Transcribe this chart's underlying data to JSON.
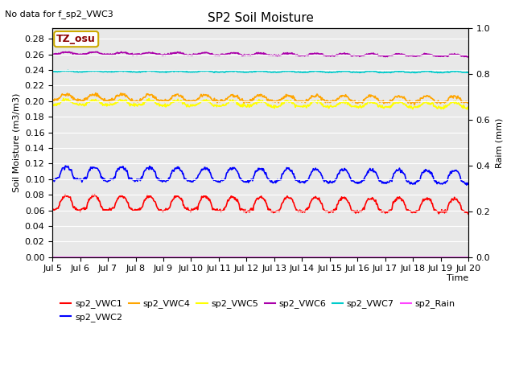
{
  "title": "SP2 Soil Moisture",
  "subtitle": "No data for f_sp2_VWC3",
  "xlabel": "Time",
  "ylabel_left": "Soil Moisture (m3/m3)",
  "ylabel_right": "Raim (mm)",
  "tz_label": "TZ_osu",
  "ylim_left": [
    0.0,
    0.2933
  ],
  "ylim_right": [
    0.0,
    1.0
  ],
  "yticks_left": [
    0.0,
    0.02,
    0.04,
    0.06,
    0.08,
    0.1,
    0.12,
    0.14,
    0.16,
    0.18,
    0.2,
    0.22,
    0.24,
    0.26,
    0.28
  ],
  "yticks_right": [
    0.0,
    0.2,
    0.4,
    0.6,
    0.8,
    1.0
  ],
  "xtick_labels": [
    "Jul 5",
    "Jul 6",
    "Jul 7",
    "Jul 8",
    "Jul 9",
    "Jul 10",
    "Jul 11",
    "Jul 12",
    "Jul 13",
    "Jul 14",
    "Jul 15",
    "Jul 16",
    "Jul 17",
    "Jul 18",
    "Jul 19",
    "Jul 20"
  ],
  "series": {
    "sp2_VWC1": {
      "color": "#ff0000",
      "base": 0.065,
      "amp": 0.014,
      "trend": -0.004,
      "noise": 0.001,
      "freq_mult": 1.0
    },
    "sp2_VWC2": {
      "color": "#0000ff",
      "base": 0.103,
      "amp": 0.013,
      "trend": -0.005,
      "noise": 0.001,
      "freq_mult": 1.0
    },
    "sp2_VWC4": {
      "color": "#ffa500",
      "base": 0.203,
      "amp": 0.006,
      "trend": -0.003,
      "noise": 0.001,
      "freq_mult": 1.0
    },
    "sp2_VWC5": {
      "color": "#ffff00",
      "base": 0.197,
      "amp": 0.005,
      "trend": -0.004,
      "noise": 0.001,
      "freq_mult": 1.0
    },
    "sp2_VWC6": {
      "color": "#aa00aa",
      "base": 0.261,
      "amp": 0.002,
      "trend": -0.003,
      "noise": 0.0005,
      "freq_mult": 1.0
    },
    "sp2_VWC7": {
      "color": "#00cccc",
      "base": 0.238,
      "amp": 0.001,
      "trend": -0.001,
      "noise": 0.0003,
      "freq_mult": 1.0
    },
    "sp2_Rain": {
      "color": "#ff44ff",
      "base": 0.0,
      "amp": 0.0,
      "trend": 0.0,
      "noise": 0.0,
      "freq_mult": 1.0
    }
  },
  "bg_color": "#e8e8e8",
  "fig_color": "#ffffff",
  "grid_color": "#ffffff",
  "linewidth": 1.2,
  "n_points": 720,
  "title_fontsize": 11,
  "label_fontsize": 8,
  "tick_fontsize": 8,
  "legend_fontsize": 8
}
